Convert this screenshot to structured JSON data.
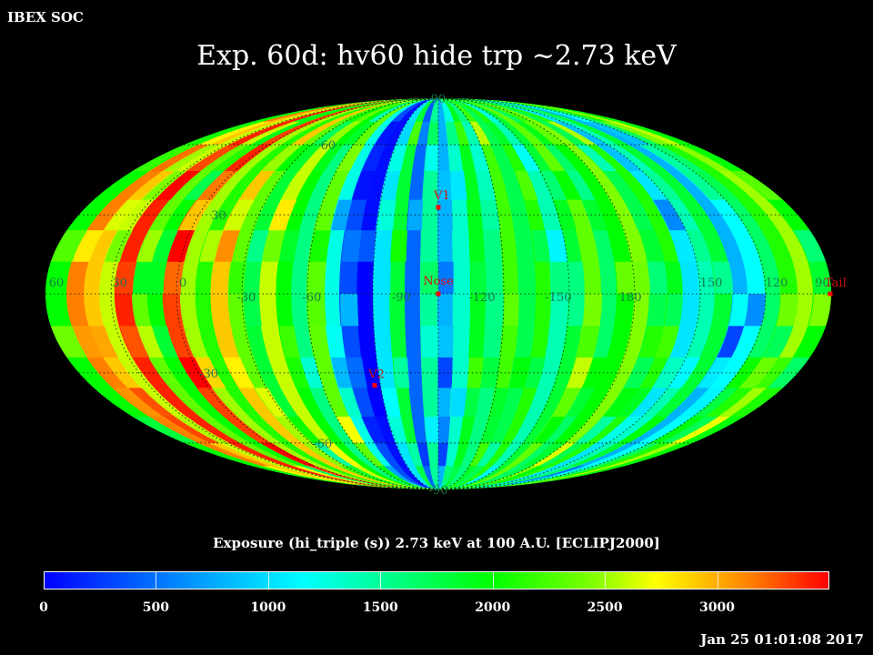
{
  "header": {
    "org": "IBEX SOC"
  },
  "title": "Exp.   60d: hv60 hide trp ~2.73 keV",
  "map": {
    "projection": "Mollweide",
    "frame": "ECLIPJ2000",
    "grid": true,
    "lat_labels": [
      {
        "text": "90",
        "lat": 90
      },
      {
        "text": "60",
        "lat": 60
      },
      {
        "text": "30",
        "lat": 30
      },
      {
        "text": "-30",
        "lat": -30
      },
      {
        "text": "-60",
        "lat": -60
      },
      {
        "text": "-90",
        "lat": -90
      }
    ],
    "lon_labels": [
      {
        "text": "60",
        "lon": -175
      },
      {
        "text": "30",
        "lon": -146
      },
      {
        "text": "0",
        "lon": -117
      },
      {
        "text": "-30",
        "lon": -88
      },
      {
        "text": "-60",
        "lon": -58
      },
      {
        "text": "-90",
        "lon": -17
      },
      {
        "text": "-120",
        "lon": 20
      },
      {
        "text": "-150",
        "lon": 55
      },
      {
        "text": "180",
        "lon": 88
      },
      {
        "text": "150",
        "lon": 125
      },
      {
        "text": "120",
        "lon": 155
      },
      {
        "text": "90",
        "lon": 176
      }
    ],
    "markers": [
      {
        "name": "V1",
        "label": "V1",
        "lon": 0,
        "lat": 33
      },
      {
        "name": "Nose",
        "label": "Nose",
        "lon": 0,
        "lat": 0
      },
      {
        "name": "V2",
        "label": "V2",
        "lon": -33,
        "lat": -35
      },
      {
        "name": "Tail",
        "label": "Tail",
        "lon": 180,
        "lat": 0
      }
    ],
    "marker_color": "#ff0000",
    "label_color": "#ff4040",
    "exposure_bands": [
      {
        "lon_start": -180,
        "lon_end": -170,
        "value": 2000
      },
      {
        "lon_start": -170,
        "lon_end": -162,
        "value": 3100
      },
      {
        "lon_start": -162,
        "lon_end": -155,
        "value": 2900
      },
      {
        "lon_start": -155,
        "lon_end": -148,
        "value": 2600
      },
      {
        "lon_start": -148,
        "lon_end": -140,
        "value": 3400
      },
      {
        "lon_start": -140,
        "lon_end": -133,
        "value": 2300
      },
      {
        "lon_start": -133,
        "lon_end": -126,
        "value": 2000
      },
      {
        "lon_start": -126,
        "lon_end": -118,
        "value": 3300
      },
      {
        "lon_start": -118,
        "lon_end": -111,
        "value": 2500
      },
      {
        "lon_start": -111,
        "lon_end": -104,
        "value": 2100
      },
      {
        "lon_start": -104,
        "lon_end": -96,
        "value": 2900
      },
      {
        "lon_start": -96,
        "lon_end": -89,
        "value": 2300
      },
      {
        "lon_start": -89,
        "lon_end": -82,
        "value": 1800
      },
      {
        "lon_start": -82,
        "lon_end": -74,
        "value": 2600
      },
      {
        "lon_start": -74,
        "lon_end": -67,
        "value": 2000
      },
      {
        "lon_start": -67,
        "lon_end": -60,
        "value": 1500
      },
      {
        "lon_start": -60,
        "lon_end": -52,
        "value": 2300
      },
      {
        "lon_start": -52,
        "lon_end": -45,
        "value": 1100
      },
      {
        "lon_start": -45,
        "lon_end": -37,
        "value": 300
      },
      {
        "lon_start": -37,
        "lon_end": -30,
        "value": 50
      },
      {
        "lon_start": -30,
        "lon_end": -22,
        "value": 900
      },
      {
        "lon_start": -22,
        "lon_end": -15,
        "value": 1800
      },
      {
        "lon_start": -15,
        "lon_end": -8,
        "value": 400
      },
      {
        "lon_start": -8,
        "lon_end": 0,
        "value": 1400
      },
      {
        "lon_start": 0,
        "lon_end": 7,
        "value": 700
      },
      {
        "lon_start": 7,
        "lon_end": 15,
        "value": 1200
      },
      {
        "lon_start": 15,
        "lon_end": 22,
        "value": 1900
      },
      {
        "lon_start": 22,
        "lon_end": 30,
        "value": 1500
      },
      {
        "lon_start": 30,
        "lon_end": 37,
        "value": 2200
      },
      {
        "lon_start": 37,
        "lon_end": 45,
        "value": 1700
      },
      {
        "lon_start": 45,
        "lon_end": 52,
        "value": 2100
      },
      {
        "lon_start": 52,
        "lon_end": 60,
        "value": 1300
      },
      {
        "lon_start": 60,
        "lon_end": 67,
        "value": 1800
      },
      {
        "lon_start": 67,
        "lon_end": 75,
        "value": 2300
      },
      {
        "lon_start": 75,
        "lon_end": 82,
        "value": 1600
      },
      {
        "lon_start": 82,
        "lon_end": 90,
        "value": 2000
      },
      {
        "lon_start": 90,
        "lon_end": 97,
        "value": 2400
      },
      {
        "lon_start": 97,
        "lon_end": 105,
        "value": 1700
      },
      {
        "lon_start": 105,
        "lon_end": 112,
        "value": 2100
      },
      {
        "lon_start": 112,
        "lon_end": 120,
        "value": 900
      },
      {
        "lon_start": 120,
        "lon_end": 127,
        "value": 1300
      },
      {
        "lon_start": 127,
        "lon_end": 135,
        "value": 1800
      },
      {
        "lon_start": 135,
        "lon_end": 142,
        "value": 700
      },
      {
        "lon_start": 142,
        "lon_end": 150,
        "value": 1000
      },
      {
        "lon_start": 150,
        "lon_end": 157,
        "value": 1600
      },
      {
        "lon_start": 157,
        "lon_end": 165,
        "value": 2100
      },
      {
        "lon_start": 165,
        "lon_end": 172,
        "value": 2500
      },
      {
        "lon_start": 172,
        "lon_end": 180,
        "value": 2000
      }
    ]
  },
  "colorbar": {
    "label": "Exposure (hi_triple (s))  2.73 keV at 100 A.U. [ECLIPJ2000]",
    "min": 0,
    "max": 3500,
    "ticks": [
      "0",
      "500",
      "1000",
      "1500",
      "2000",
      "2500",
      "3000"
    ],
    "tick_values": [
      0,
      500,
      1000,
      1500,
      2000,
      2500,
      3000
    ]
  },
  "timestamp": "Jan 25 01:01:08 2017"
}
